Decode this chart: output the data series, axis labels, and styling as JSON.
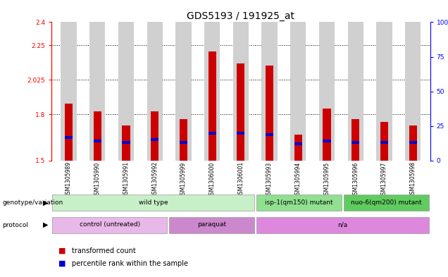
{
  "title": "GDS5193 / 191925_at",
  "samples": [
    "GSM1305989",
    "GSM1305990",
    "GSM1305991",
    "GSM1305992",
    "GSM1305999",
    "GSM1306000",
    "GSM1306001",
    "GSM1305993",
    "GSM1305994",
    "GSM1305995",
    "GSM1305996",
    "GSM1305997",
    "GSM1305998"
  ],
  "red_values": [
    1.87,
    1.82,
    1.73,
    1.82,
    1.77,
    2.21,
    2.13,
    2.12,
    1.67,
    1.84,
    1.77,
    1.75,
    1.73
  ],
  "blue_positions": [
    1.64,
    1.62,
    1.61,
    1.63,
    1.61,
    1.67,
    1.67,
    1.66,
    1.6,
    1.62,
    1.61,
    1.61,
    1.61
  ],
  "ymin": 1.5,
  "ymax": 2.4,
  "yticks_left": [
    1.5,
    1.8,
    2.025,
    2.25,
    2.4
  ],
  "yticks_right": [
    0,
    25,
    50,
    75,
    100
  ],
  "grid_values": [
    1.8,
    2.025,
    2.25
  ],
  "genotype_groups": [
    {
      "label": "wild type",
      "start": 0,
      "end": 7,
      "color": "#c8f0c8"
    },
    {
      "label": "isp-1(qm150) mutant",
      "start": 7,
      "end": 10,
      "color": "#90e090"
    },
    {
      "label": "nuo-6(qm200) mutant",
      "start": 10,
      "end": 13,
      "color": "#60cc60"
    }
  ],
  "protocol_groups": [
    {
      "label": "control (untreated)",
      "start": 0,
      "end": 4,
      "color": "#e8b8e8"
    },
    {
      "label": "paraquat",
      "start": 4,
      "end": 7,
      "color": "#cc88cc"
    },
    {
      "label": "n/a",
      "start": 7,
      "end": 13,
      "color": "#dd88dd"
    }
  ],
  "red_color": "#cc0000",
  "blue_color": "#0000cc",
  "bar_bg_color": "#d0d0d0",
  "title_fontsize": 10,
  "tick_fontsize": 6.5
}
